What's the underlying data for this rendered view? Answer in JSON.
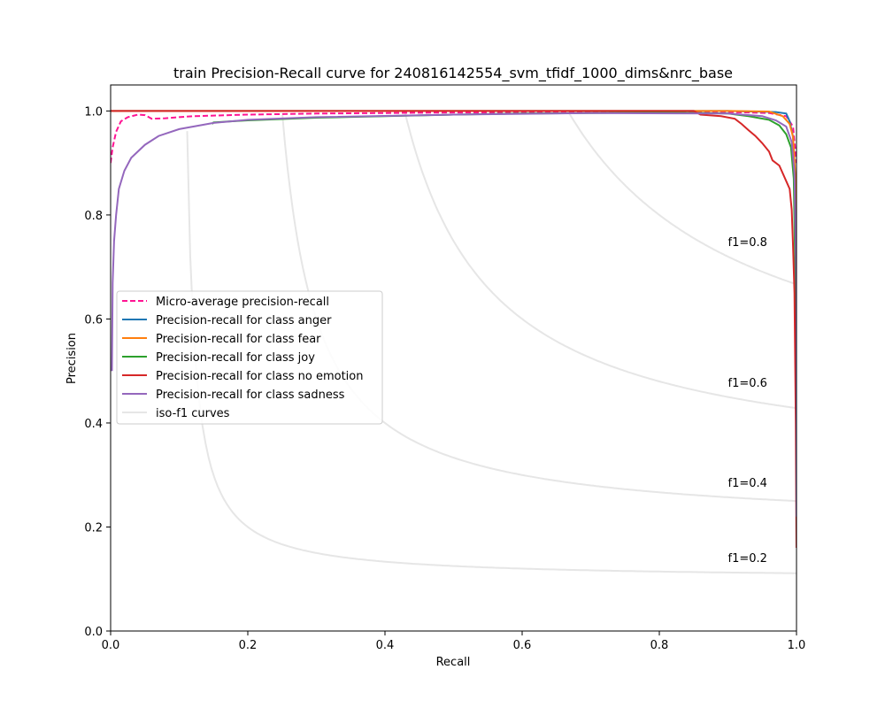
{
  "chart_data": {
    "type": "line",
    "title": "train Precision-Recall curve for 240816142554_svm_tfidf_1000_dims&nrc_base",
    "xlabel": "Recall",
    "ylabel": "Precision",
    "xlim": [
      0.0,
      1.0
    ],
    "ylim": [
      0.0,
      1.05
    ],
    "x_ticks": [
      0.0,
      0.2,
      0.4,
      0.6,
      0.8,
      1.0
    ],
    "y_ticks": [
      0.0,
      0.2,
      0.4,
      0.6,
      0.8,
      1.0
    ],
    "x_tick_labels": [
      "0.0",
      "0.2",
      "0.4",
      "0.6",
      "0.8",
      "1.0"
    ],
    "y_tick_labels": [
      "0.0",
      "0.2",
      "0.4",
      "0.6",
      "0.8",
      "1.0"
    ],
    "grid": false,
    "legend_position": "center-left",
    "iso_f1": {
      "values": [
        0.2,
        0.4,
        0.6,
        0.8
      ],
      "labels": [
        "f1=0.2",
        "f1=0.4",
        "f1=0.6",
        "f1=0.8"
      ],
      "color": "#e6e6e6"
    },
    "series": [
      {
        "name": "Micro-average precision-recall",
        "color": "#ff1493",
        "dash": true,
        "points": [
          [
            0.0,
            0.9
          ],
          [
            0.003,
            0.93
          ],
          [
            0.008,
            0.96
          ],
          [
            0.015,
            0.98
          ],
          [
            0.025,
            0.988
          ],
          [
            0.04,
            0.993
          ],
          [
            0.05,
            0.992
          ],
          [
            0.06,
            0.985
          ],
          [
            0.08,
            0.986
          ],
          [
            0.1,
            0.988
          ],
          [
            0.12,
            0.99
          ],
          [
            0.2,
            0.993
          ],
          [
            0.3,
            0.995
          ],
          [
            0.5,
            0.997
          ],
          [
            0.7,
            0.998
          ],
          [
            0.9,
            0.998
          ],
          [
            0.96,
            0.996
          ],
          [
            0.985,
            0.99
          ],
          [
            0.995,
            0.97
          ],
          [
            1.0,
            0.9
          ]
        ]
      },
      {
        "name": "Precision-recall for class anger",
        "color": "#1f77b4",
        "dash": false,
        "points": [
          [
            0.0,
            1.0
          ],
          [
            0.5,
            1.0
          ],
          [
            0.9,
            1.0
          ],
          [
            0.97,
            0.998
          ],
          [
            0.985,
            0.995
          ],
          [
            0.99,
            0.98
          ],
          [
            0.995,
            0.95
          ],
          [
            0.998,
            0.85
          ],
          [
            1.0,
            0.6
          ],
          [
            1.0,
            0.25
          ]
        ]
      },
      {
        "name": "Precision-recall for class fear",
        "color": "#ff7f0e",
        "dash": false,
        "points": [
          [
            0.0,
            1.0
          ],
          [
            0.5,
            1.0
          ],
          [
            0.9,
            1.0
          ],
          [
            0.96,
            0.999
          ],
          [
            0.98,
            0.99
          ],
          [
            0.99,
            0.975
          ],
          [
            0.995,
            0.95
          ],
          [
            0.998,
            0.88
          ],
          [
            1.0,
            0.7
          ],
          [
            1.0,
            0.24
          ]
        ]
      },
      {
        "name": "Precision-recall for class joy",
        "color": "#2ca02c",
        "dash": false,
        "points": [
          [
            0.148,
            0.975
          ],
          [
            0.15,
            0.978
          ],
          [
            0.2,
            0.982
          ],
          [
            0.3,
            0.987
          ],
          [
            0.4,
            0.99
          ],
          [
            0.5,
            0.993
          ],
          [
            0.6,
            0.995
          ],
          [
            0.7,
            0.996
          ],
          [
            0.8,
            0.997
          ],
          [
            0.9,
            0.995
          ],
          [
            0.93,
            0.99
          ],
          [
            0.96,
            0.983
          ],
          [
            0.975,
            0.972
          ],
          [
            0.985,
            0.955
          ],
          [
            0.992,
            0.93
          ],
          [
            0.996,
            0.87
          ],
          [
            0.998,
            0.7
          ],
          [
            1.0,
            0.4
          ],
          [
            1.0,
            0.24
          ]
        ]
      },
      {
        "name": "Precision-recall for class no emotion",
        "color": "#d62728",
        "dash": false,
        "points": [
          [
            0.0,
            1.0
          ],
          [
            0.5,
            1.0
          ],
          [
            0.85,
            1.0
          ],
          [
            0.86,
            0.993
          ],
          [
            0.89,
            0.99
          ],
          [
            0.91,
            0.985
          ],
          [
            0.92,
            0.975
          ],
          [
            0.93,
            0.963
          ],
          [
            0.94,
            0.952
          ],
          [
            0.95,
            0.938
          ],
          [
            0.96,
            0.922
          ],
          [
            0.965,
            0.905
          ],
          [
            0.975,
            0.895
          ],
          [
            0.985,
            0.865
          ],
          [
            0.99,
            0.85
          ],
          [
            0.993,
            0.81
          ],
          [
            0.995,
            0.74
          ],
          [
            0.997,
            0.65
          ],
          [
            0.999,
            0.4
          ],
          [
            1.0,
            0.16
          ]
        ]
      },
      {
        "name": "Precision-recall for class sadness",
        "color": "#9467bd",
        "dash": false,
        "points": [
          [
            0.002,
            0.5
          ],
          [
            0.003,
            0.67
          ],
          [
            0.005,
            0.75
          ],
          [
            0.008,
            0.8
          ],
          [
            0.012,
            0.85
          ],
          [
            0.02,
            0.885
          ],
          [
            0.03,
            0.91
          ],
          [
            0.05,
            0.935
          ],
          [
            0.07,
            0.952
          ],
          [
            0.1,
            0.965
          ],
          [
            0.15,
            0.977
          ],
          [
            0.2,
            0.983
          ],
          [
            0.3,
            0.988
          ],
          [
            0.5,
            0.993
          ],
          [
            0.7,
            0.996
          ],
          [
            0.9,
            0.995
          ],
          [
            0.95,
            0.99
          ],
          [
            0.97,
            0.982
          ],
          [
            0.985,
            0.97
          ],
          [
            0.993,
            0.94
          ],
          [
            0.997,
            0.88
          ],
          [
            1.0,
            0.65
          ],
          [
            1.0,
            0.22
          ]
        ]
      }
    ],
    "legend_iso_label": "iso-f1 curves"
  }
}
